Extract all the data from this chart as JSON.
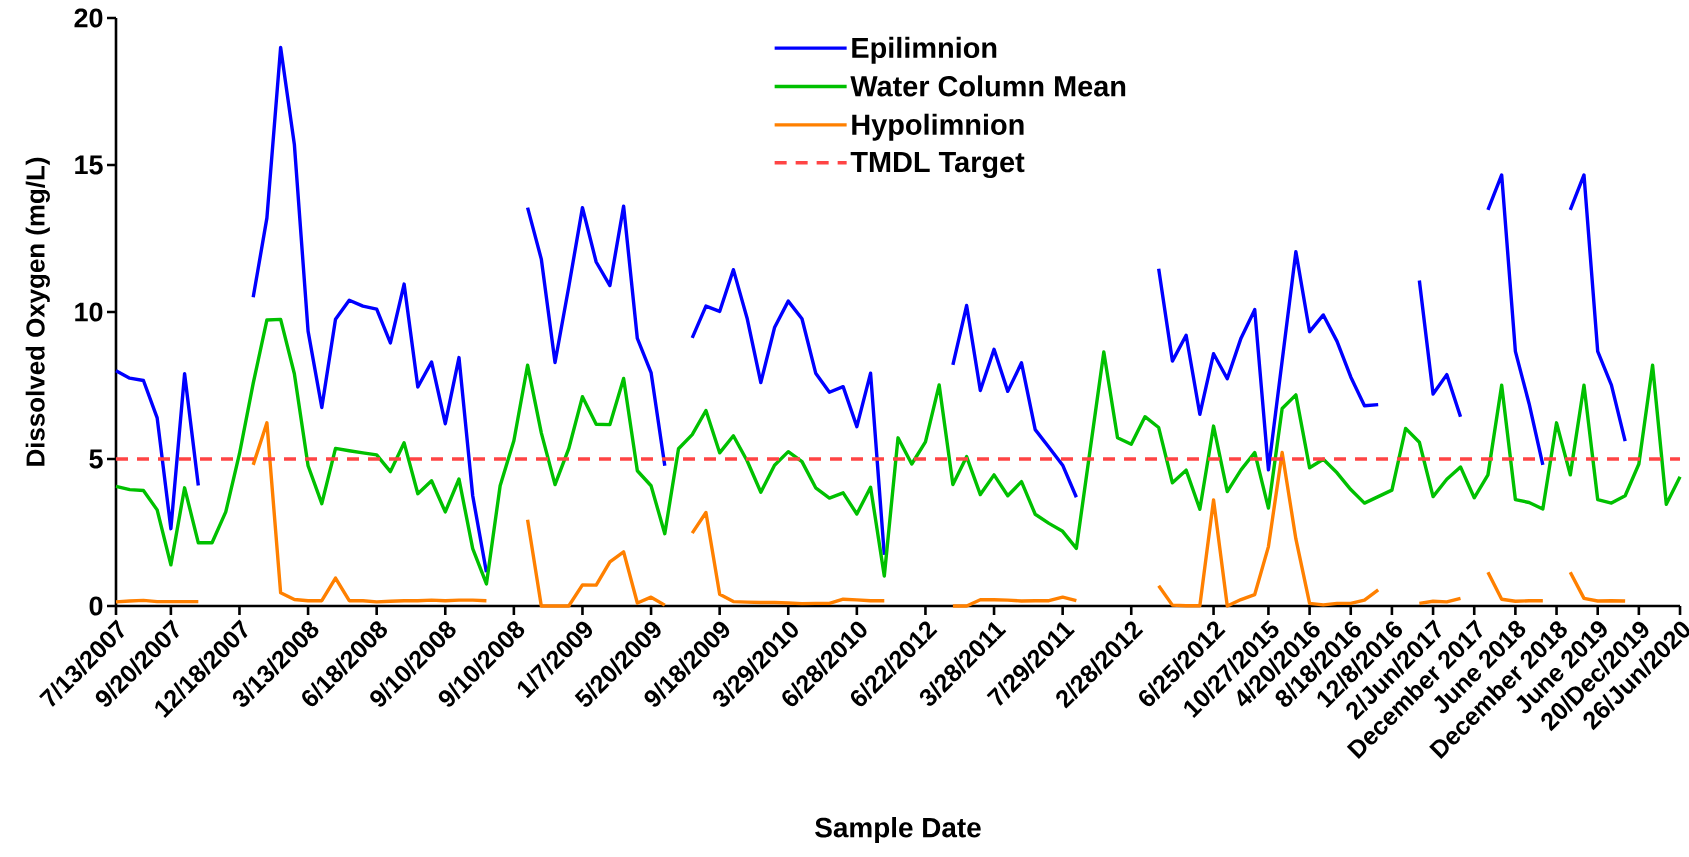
{
  "chart_data": {
    "type": "line",
    "xlabel": "Sample Date",
    "ylabel": "Dissolved Oxygen (mg/L)",
    "categories": [
      "7/13/2007",
      null,
      null,
      null,
      "9/20/2007",
      null,
      null,
      null,
      null,
      "12/18/2007",
      null,
      null,
      null,
      null,
      "3/13/2008",
      null,
      null,
      null,
      null,
      "6/18/2008",
      null,
      null,
      null,
      null,
      "9/10/2008",
      null,
      null,
      null,
      null,
      "9/10/2008",
      null,
      null,
      null,
      null,
      "1/7/2009",
      null,
      null,
      null,
      null,
      "5/20/2009",
      null,
      null,
      null,
      null,
      "9/18/2009",
      null,
      null,
      null,
      null,
      "3/29/2010",
      null,
      null,
      null,
      null,
      "6/28/2010",
      null,
      null,
      null,
      null,
      "6/22/2012",
      null,
      null,
      null,
      null,
      "3/28/2011",
      null,
      null,
      null,
      null,
      "7/29/2011",
      null,
      null,
      null,
      null,
      "2/28/2012",
      null,
      null,
      null,
      null,
      null,
      "6/25/2012",
      null,
      null,
      null,
      "10/27/2015",
      null,
      null,
      "4/20/2016",
      null,
      null,
      "8/18/2016",
      null,
      null,
      "12/8/2016",
      null,
      null,
      "2/Jun/2017",
      null,
      null,
      "December 2017",
      null,
      null,
      "June 2018",
      null,
      null,
      "December 2018",
      null,
      null,
      "June 2019",
      null,
      null,
      "20/Dec/2019",
      null,
      null,
      "26/Jun/2020"
    ],
    "series": [
      {
        "name": "Epilimnion",
        "color": "#0000ff",
        "values": [
          8.0,
          7.75,
          7.67,
          6.4,
          2.63,
          7.9,
          4.1,
          null,
          null,
          null,
          10.5,
          13.2,
          19.0,
          15.7,
          9.35,
          6.75,
          9.75,
          10.4,
          10.2,
          10.1,
          8.95,
          10.95,
          7.45,
          8.3,
          6.2,
          8.45,
          3.75,
          1.15,
          null,
          null,
          13.55,
          11.8,
          8.28,
          10.85,
          13.55,
          11.7,
          10.9,
          13.6,
          9.1,
          7.94,
          4.77,
          null,
          9.12,
          10.2,
          10.02,
          11.44,
          9.79,
          7.6,
          9.47,
          10.37,
          9.77,
          7.92,
          7.27,
          7.46,
          6.1,
          7.92,
          1.74,
          null,
          null,
          null,
          null,
          8.2,
          10.22,
          7.33,
          8.73,
          7.3,
          8.27,
          6.0,
          5.4,
          4.79,
          3.7,
          null,
          null,
          null,
          null,
          null,
          11.47,
          8.33,
          9.21,
          6.52,
          8.58,
          7.73,
          9.11,
          10.08,
          4.63,
          8.34,
          12.05,
          9.33,
          9.9,
          9.0,
          7.79,
          6.81,
          6.85,
          null,
          null,
          11.07,
          7.21,
          7.87,
          6.44,
          null,
          13.47,
          14.66,
          8.66,
          6.88,
          4.8,
          null,
          13.47,
          14.66,
          8.66,
          7.51,
          5.61,
          null,
          null,
          null,
          null
        ]
      },
      {
        "name": "Water Column Mean",
        "color": "#00c000",
        "values": [
          4.07,
          3.96,
          3.93,
          3.27,
          1.4,
          4.02,
          2.15,
          2.15,
          3.2,
          5.18,
          7.57,
          9.73,
          9.75,
          7.9,
          4.77,
          3.48,
          5.36,
          5.28,
          5.21,
          5.14,
          4.57,
          5.55,
          3.82,
          4.26,
          3.2,
          4.32,
          1.95,
          0.75,
          4.09,
          5.62,
          8.19,
          5.89,
          4.13,
          5.35,
          7.12,
          6.18,
          6.17,
          7.74,
          4.6,
          4.09,
          2.46,
          5.35,
          5.83,
          6.65,
          5.21,
          5.79,
          4.94,
          3.87,
          4.79,
          5.25,
          4.91,
          4.02,
          3.67,
          3.85,
          3.13,
          4.04,
          1.02,
          5.72,
          4.83,
          5.58,
          7.52,
          4.13,
          5.08,
          3.79,
          4.46,
          3.75,
          4.23,
          3.12,
          2.81,
          2.54,
          1.96,
          5.3,
          8.64,
          5.72,
          5.5,
          6.44,
          6.07,
          4.19,
          4.62,
          3.29,
          6.12,
          3.89,
          4.63,
          5.22,
          3.33,
          6.72,
          7.18,
          4.7,
          4.99,
          4.53,
          3.96,
          3.5,
          3.72,
          3.94,
          6.04,
          5.57,
          3.72,
          4.31,
          4.73,
          3.68,
          4.46,
          7.51,
          3.62,
          3.52,
          3.3,
          6.23,
          4.46,
          7.51,
          3.62,
          3.5,
          3.75,
          4.83,
          8.19,
          3.46,
          4.4
        ]
      },
      {
        "name": "Hypolimnion",
        "color": "#ff8000",
        "values": [
          0.14,
          0.17,
          0.19,
          0.15,
          0.15,
          0.15,
          0.15,
          null,
          null,
          null,
          4.8,
          6.23,
          0.45,
          0.22,
          0.18,
          0.18,
          0.95,
          0.18,
          0.18,
          0.14,
          0.16,
          0.18,
          0.18,
          0.2,
          0.18,
          0.2,
          0.2,
          0.18,
          null,
          null,
          2.93,
          0,
          0,
          0,
          0.72,
          0.71,
          1.5,
          1.84,
          0.1,
          0.3,
          0.03,
          null,
          2.48,
          3.18,
          0.4,
          0.15,
          0.13,
          0.12,
          0.12,
          0.1,
          0.08,
          0.09,
          0.09,
          0.23,
          0.21,
          0.18,
          0.18,
          null,
          null,
          null,
          null,
          0,
          0,
          0.21,
          0.21,
          0.2,
          0.17,
          0.18,
          0.18,
          0.3,
          0.18,
          null,
          null,
          null,
          null,
          null,
          0.69,
          0.03,
          0.01,
          0.01,
          3.61,
          0,
          0.22,
          0.39,
          2.02,
          5.22,
          2.28,
          0.09,
          0.04,
          0.09,
          0.09,
          0.2,
          0.55,
          null,
          null,
          0.09,
          0.16,
          0.14,
          0.26,
          null,
          1.15,
          0.23,
          0.16,
          0.18,
          0.18,
          null,
          1.15,
          0.26,
          0.17,
          0.18,
          0.17,
          null,
          null,
          null,
          null
        ]
      }
    ],
    "ylim": [
      0,
      20
    ],
    "yticks": [
      0,
      5,
      10,
      15,
      20
    ],
    "ref_lines": [
      {
        "axis": "y",
        "value": 5,
        "label": "TMDL Target",
        "color": "#ff4444",
        "line_style": "dashed"
      }
    ],
    "legend": "top",
    "line_style": "solid"
  }
}
